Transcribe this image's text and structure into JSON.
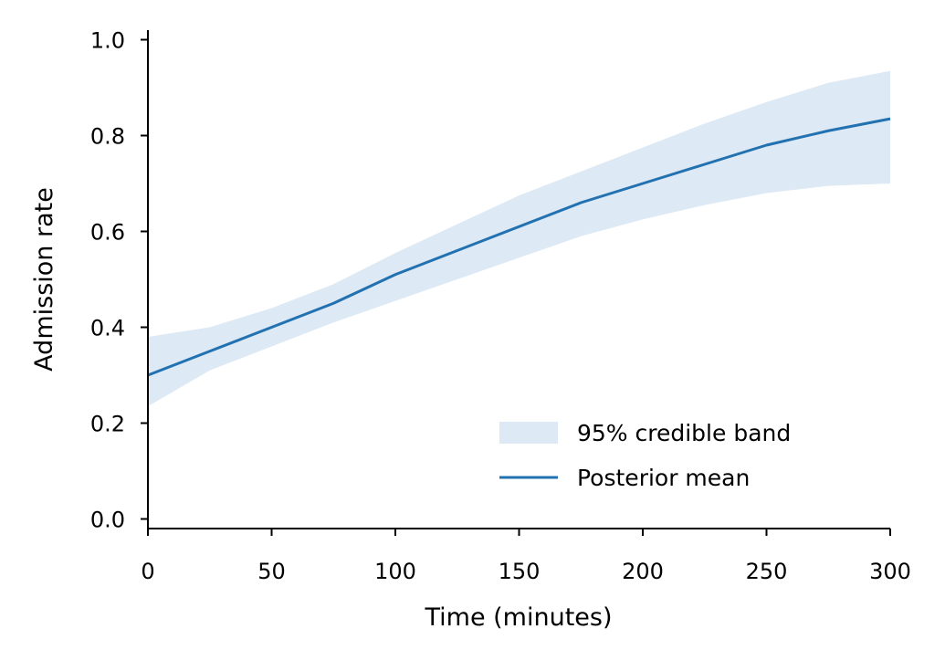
{
  "chart_data": {
    "type": "line",
    "title": "",
    "xlabel": "Time (minutes)",
    "ylabel": "Admission rate",
    "xlim": [
      0,
      300
    ],
    "ylim": [
      -0.02,
      1.02
    ],
    "x_ticks": [
      0,
      50,
      100,
      150,
      200,
      250,
      300
    ],
    "y_ticks": [
      0.0,
      0.2,
      0.4,
      0.6,
      0.8,
      1.0
    ],
    "x_tick_labels": [
      "0",
      "50",
      "100",
      "150",
      "200",
      "250",
      "300"
    ],
    "y_tick_labels": [
      "0.0",
      "0.2",
      "0.4",
      "0.6",
      "0.8",
      "1.0"
    ],
    "grid": false,
    "legend_position": "lower-right",
    "x": [
      0,
      25,
      50,
      75,
      100,
      125,
      150,
      175,
      200,
      225,
      250,
      275,
      300
    ],
    "series": [
      {
        "name": "Posterior mean",
        "kind": "line",
        "color": "#2271b1",
        "values": [
          0.3,
          0.35,
          0.4,
          0.45,
          0.51,
          0.56,
          0.61,
          0.66,
          0.7,
          0.74,
          0.78,
          0.81,
          0.835
        ]
      },
      {
        "name": "95% credible band",
        "kind": "band",
        "color": "#dde9f4",
        "lower": [
          0.235,
          0.31,
          0.36,
          0.41,
          0.455,
          0.5,
          0.545,
          0.59,
          0.625,
          0.655,
          0.68,
          0.695,
          0.7
        ],
        "upper": [
          0.38,
          0.4,
          0.44,
          0.49,
          0.555,
          0.615,
          0.675,
          0.725,
          0.775,
          0.825,
          0.87,
          0.91,
          0.935
        ]
      }
    ]
  }
}
